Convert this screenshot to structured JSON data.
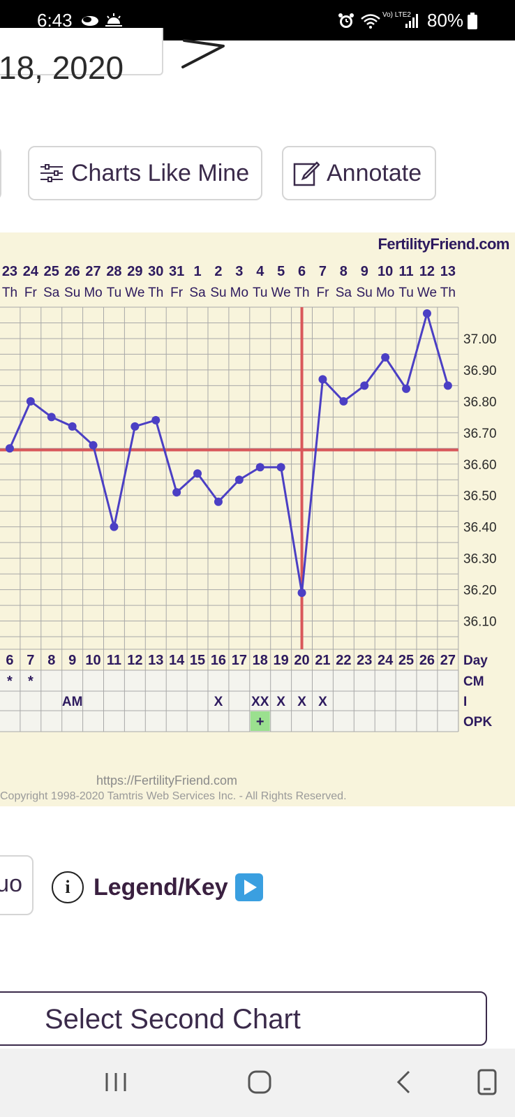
{
  "status_bar": {
    "time": "6:43",
    "battery": "80%",
    "network_label": "Vo) LTE2"
  },
  "header": {
    "date_fragment": "18, 2020"
  },
  "toolbar": {
    "charts_like_mine": "Charts Like Mine",
    "annotate": "Annotate"
  },
  "chart": {
    "brand": "FertilityFriend.com",
    "url": "https://FertilityFriend.com",
    "copyright": "Copyright 1998-2020 Tamtris Web Services Inc. - All Rights Reserved.",
    "row_labels": [
      "Day",
      "CM",
      "I",
      "OPK"
    ],
    "accent_line_color": "#d9575a",
    "series_color": "#4b3fc4"
  },
  "chart_data": {
    "type": "line",
    "dates": [
      "23",
      "24",
      "25",
      "26",
      "27",
      "28",
      "29",
      "30",
      "31",
      "1",
      "2",
      "3",
      "4",
      "5",
      "6",
      "7",
      "8",
      "9",
      "10",
      "11",
      "12",
      "13"
    ],
    "weekdays": [
      "Th",
      "Fr",
      "Sa",
      "Su",
      "Mo",
      "Tu",
      "We",
      "Th",
      "Fr",
      "Sa",
      "Su",
      "Mo",
      "Tu",
      "We",
      "Th",
      "Fr",
      "Sa",
      "Su",
      "Mo",
      "Tu",
      "We",
      "Th"
    ],
    "cycle_days": [
      "6",
      "7",
      "8",
      "9",
      "10",
      "11",
      "12",
      "13",
      "14",
      "15",
      "16",
      "17",
      "18",
      "19",
      "20",
      "21",
      "22",
      "23",
      "24",
      "25",
      "26",
      "27"
    ],
    "temperatures": [
      36.65,
      36.8,
      36.75,
      36.72,
      36.66,
      36.4,
      36.72,
      36.74,
      36.51,
      36.57,
      36.48,
      36.55,
      36.59,
      36.59,
      36.19,
      36.87,
      36.8,
      36.85,
      36.94,
      36.84,
      37.08,
      36.85
    ],
    "y_ticks": [
      "37.00",
      "36.90",
      "36.80",
      "36.70",
      "36.60",
      "36.50",
      "36.40",
      "36.30",
      "36.20",
      "36.10"
    ],
    "ylim": [
      36.01,
      37.1
    ],
    "coverline": 36.645,
    "ovulation_cycle_day": "20",
    "cm_markers": [
      "*",
      "*",
      "",
      "",
      "",
      "",
      "",
      "",
      "",
      "",
      "",
      "",
      "",
      "",
      "",
      "",
      "",
      "",
      "",
      "",
      "",
      ""
    ],
    "intercourse": [
      "",
      "",
      "",
      "AM",
      "",
      "",
      "",
      "",
      "",
      "",
      "X",
      "",
      "XX",
      "X",
      "X",
      "X",
      "",
      "",
      "",
      "",
      "",
      ""
    ],
    "opk": [
      "",
      "",
      "",
      "",
      "",
      "",
      "",
      "",
      "",
      "",
      "",
      "",
      "+",
      "",
      "",
      "",
      "",
      "",
      "",
      "",
      "",
      ""
    ]
  },
  "legend": {
    "stub_label": "uo",
    "info_glyph": "i",
    "label": "Legend/Key"
  },
  "select_second": "Select Second Chart"
}
